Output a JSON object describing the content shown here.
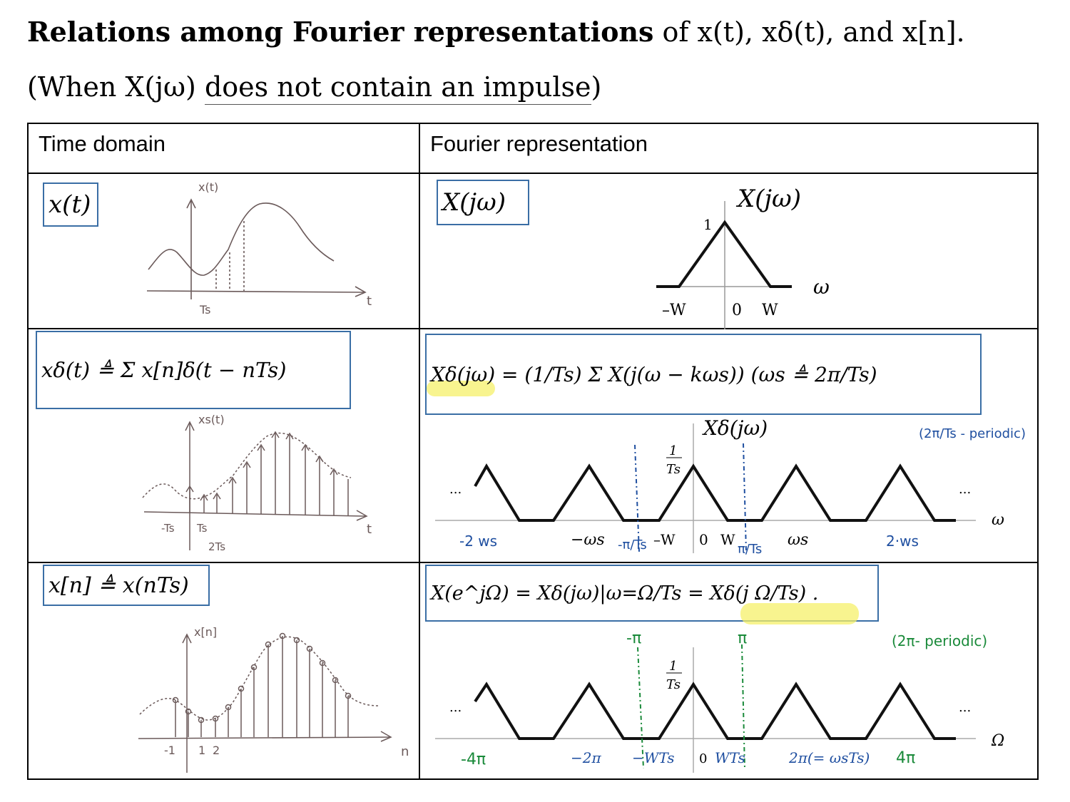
{
  "title": {
    "bold": "Relations among Fourier representations",
    "rest": " of x(t), xδ(t), and x[n]."
  },
  "subtitle": {
    "open": "(When X(jω) ",
    "underlined": "does not contain an impulse",
    "close": ")"
  },
  "table": {
    "header_left": "Time domain",
    "header_right": "Fourier representation"
  },
  "row1": {
    "time_box": "x(t)",
    "freq_box": "X(jω)",
    "sketch_label": "x(t)",
    "sketch_t": "t",
    "sketch_Ts": "Ts",
    "plot_title": "X(jω)",
    "plot_peak": "1",
    "plot_neg_w": "–W",
    "plot_zero": "0",
    "plot_w": "W",
    "plot_axis": "ω"
  },
  "row2": {
    "time_box": "xδ(t) ≜ Σ x[n]δ(t − nTs)",
    "freq_box": "Xδ(jω) = (1/Ts) Σ X(j(ω − kωs))   (ωs ≜ 2π/Ts)",
    "sketch_label": "xs(t)",
    "sketch_t": "t",
    "sketch_ticks": [
      "-Ts",
      "Ts",
      "2Ts"
    ],
    "plot_title": "Xδ(jω)",
    "plot_peak_num": "1",
    "plot_peak_den": "Ts",
    "plot_ellipsis": "...",
    "plot_axis": "ω",
    "ticks_black": [
      "−ωs",
      "–W",
      "0",
      "W",
      "ωs"
    ],
    "ticks_hand": [
      "-2 ws",
      "-π/Ts",
      "π/Ts",
      "2·ws"
    ],
    "note": "(2π/Ts - periodic)"
  },
  "row3": {
    "time_box": "x[n] ≜ x(nTs)",
    "freq_box": "X(e^jΩ) = Xδ(jω)|ω=Ω/Ts = Xδ(j Ω/Ts) .",
    "sketch_label": "x[n]",
    "sketch_n": "n",
    "sketch_ticks": [
      "-1",
      "1",
      "2"
    ],
    "plot_peak_num": "1",
    "plot_peak_den": "Ts",
    "plot_ellipsis": "...",
    "plot_axis": "Ω",
    "ticks_black": [
      "−2π",
      "−WTs",
      "0",
      "WTs",
      "2π(= ωsTs)"
    ],
    "ticks_hand": [
      "-4π",
      "-π",
      "π",
      "4π"
    ],
    "note": "(2π- periodic)"
  },
  "colors": {
    "box_border": "#3a6ea5",
    "highlight": "#f5f06a",
    "hand_blue": "#1f4fa0",
    "hand_green": "#1a8a3a",
    "pencil": "#6b5a5a"
  }
}
